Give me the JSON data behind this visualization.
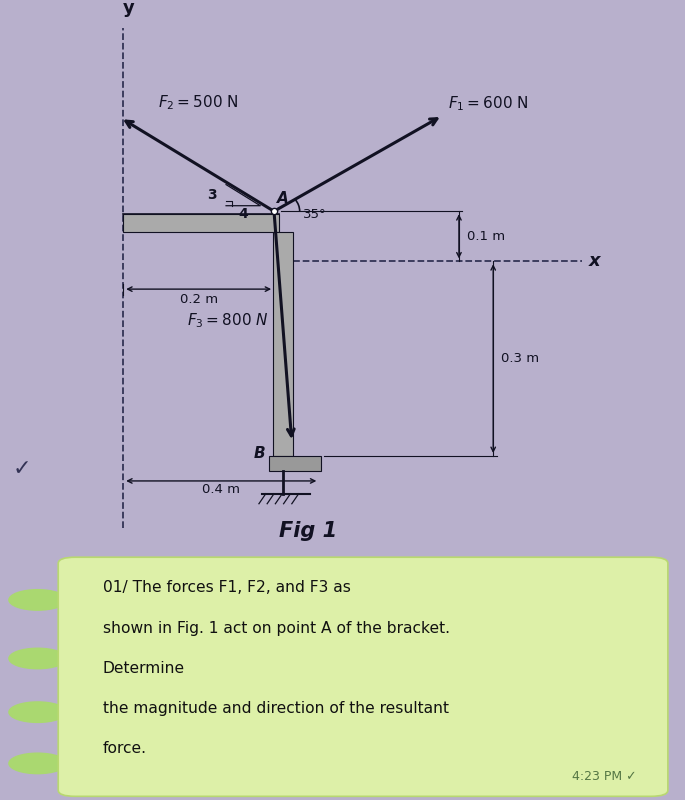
{
  "bg_color": "#b8b0cc",
  "paper_color": "#d8d0e4",
  "chat_color": "#c8e896",
  "bubble_color": "#ddf0a8",
  "figure_title": "Fig 1",
  "f1_label": "$F_1 = 600$ N",
  "f2_label": "$F_2 = 500$ N",
  "f3_label": "$F_3 = 800$ N",
  "angle_label": "35°",
  "ratio_3": "3",
  "ratio_4": "4",
  "dim_01": "0.1 m",
  "dim_02": "0.2 m",
  "dim_04": "0.4 m",
  "dim_03": "0.3 m",
  "label_A": "A",
  "label_B": "B",
  "label_x": "x",
  "label_y": "y",
  "chat_text_line1": "01/ The forces F1, F2, and F3 as",
  "chat_text_line2": "shown in Fig. 1 act on point A of the bracket.",
  "chat_text_line3": "Determine",
  "chat_text_line4": "the magnitude and direction of the resultant",
  "chat_text_line5": "force.",
  "chat_time": "4:23 PM ✓",
  "arrow_color": "#111122",
  "line_color": "#111122",
  "dashed_color": "#333355"
}
